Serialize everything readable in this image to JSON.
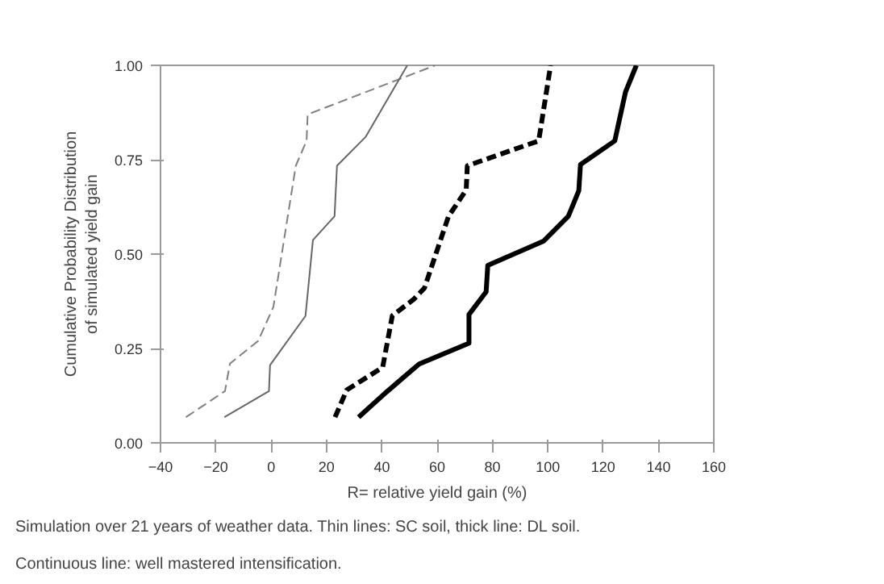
{
  "chart_data": {
    "type": "line",
    "xlabel": "R= relative yield gain (%)",
    "ylabel": "Cumulative Probability Distribution\nof simulated yield gain",
    "xlim": [
      -40,
      160
    ],
    "xticks": [
      -40,
      -20,
      0,
      20,
      40,
      60,
      80,
      100,
      120,
      140,
      160
    ],
    "ylim": [
      0,
      1
    ],
    "yticks": [
      {
        "value": 0,
        "label": "0.00"
      },
      {
        "value": 0.25,
        "label": "0.25"
      },
      {
        "value": 0.5,
        "label": "0.50"
      },
      {
        "value": 0.75,
        "label": "0.75"
      },
      {
        "value": 1,
        "label": "1.00"
      }
    ],
    "grid": false,
    "marker": "none",
    "series": [
      {
        "color": "#808080",
        "line_style": "dashed",
        "x": [
          -30.8,
          -16.7,
          -14.9,
          -4.7,
          0.8,
          8.9,
          12.8,
          13.2,
          59.3
        ],
        "values": [
          0.068,
          0.137,
          0.21,
          0.27,
          0.36,
          0.734,
          0.8,
          0.87,
          1.0
        ]
      },
      {
        "color": "#666666",
        "line_style": "solid",
        "x": [
          -16.9,
          -0.8,
          -0.4,
          12.4,
          15.1,
          22.9,
          23.8,
          34.1,
          49.2
        ],
        "values": [
          0.068,
          0.137,
          0.206,
          0.336,
          0.537,
          0.6,
          0.734,
          0.81,
          1.0
        ]
      },
      {
        "color": "#000000",
        "line_style": "dashed",
        "x": [
          23.1,
          27.3,
          40.3,
          43.8,
          51.5,
          55.4,
          64.1,
          70.5,
          70.9,
          96.7,
          101
        ],
        "values": [
          0.068,
          0.14,
          0.2,
          0.337,
          0.38,
          0.41,
          0.6,
          0.67,
          0.734,
          0.8,
          1.0
        ]
      },
      {
        "color": "#000000",
        "line_style": "solid",
        "x": [
          31.6,
          41.9,
          53.5,
          71.5,
          71.5,
          77.7,
          78.3,
          98.4,
          107.4,
          111.2,
          111.8,
          124.2,
          128.1,
          132
        ],
        "values": [
          0.068,
          0.136,
          0.209,
          0.264,
          0.34,
          0.4,
          0.47,
          0.534,
          0.6,
          0.668,
          0.737,
          0.8,
          0.93,
          1.0
        ]
      }
    ],
    "annotations": [
      "Simulation over 21 years of weather data. Thin lines: SC soil, thick line: DL soil.",
      "Continuous line: well mastered intensification."
    ]
  }
}
